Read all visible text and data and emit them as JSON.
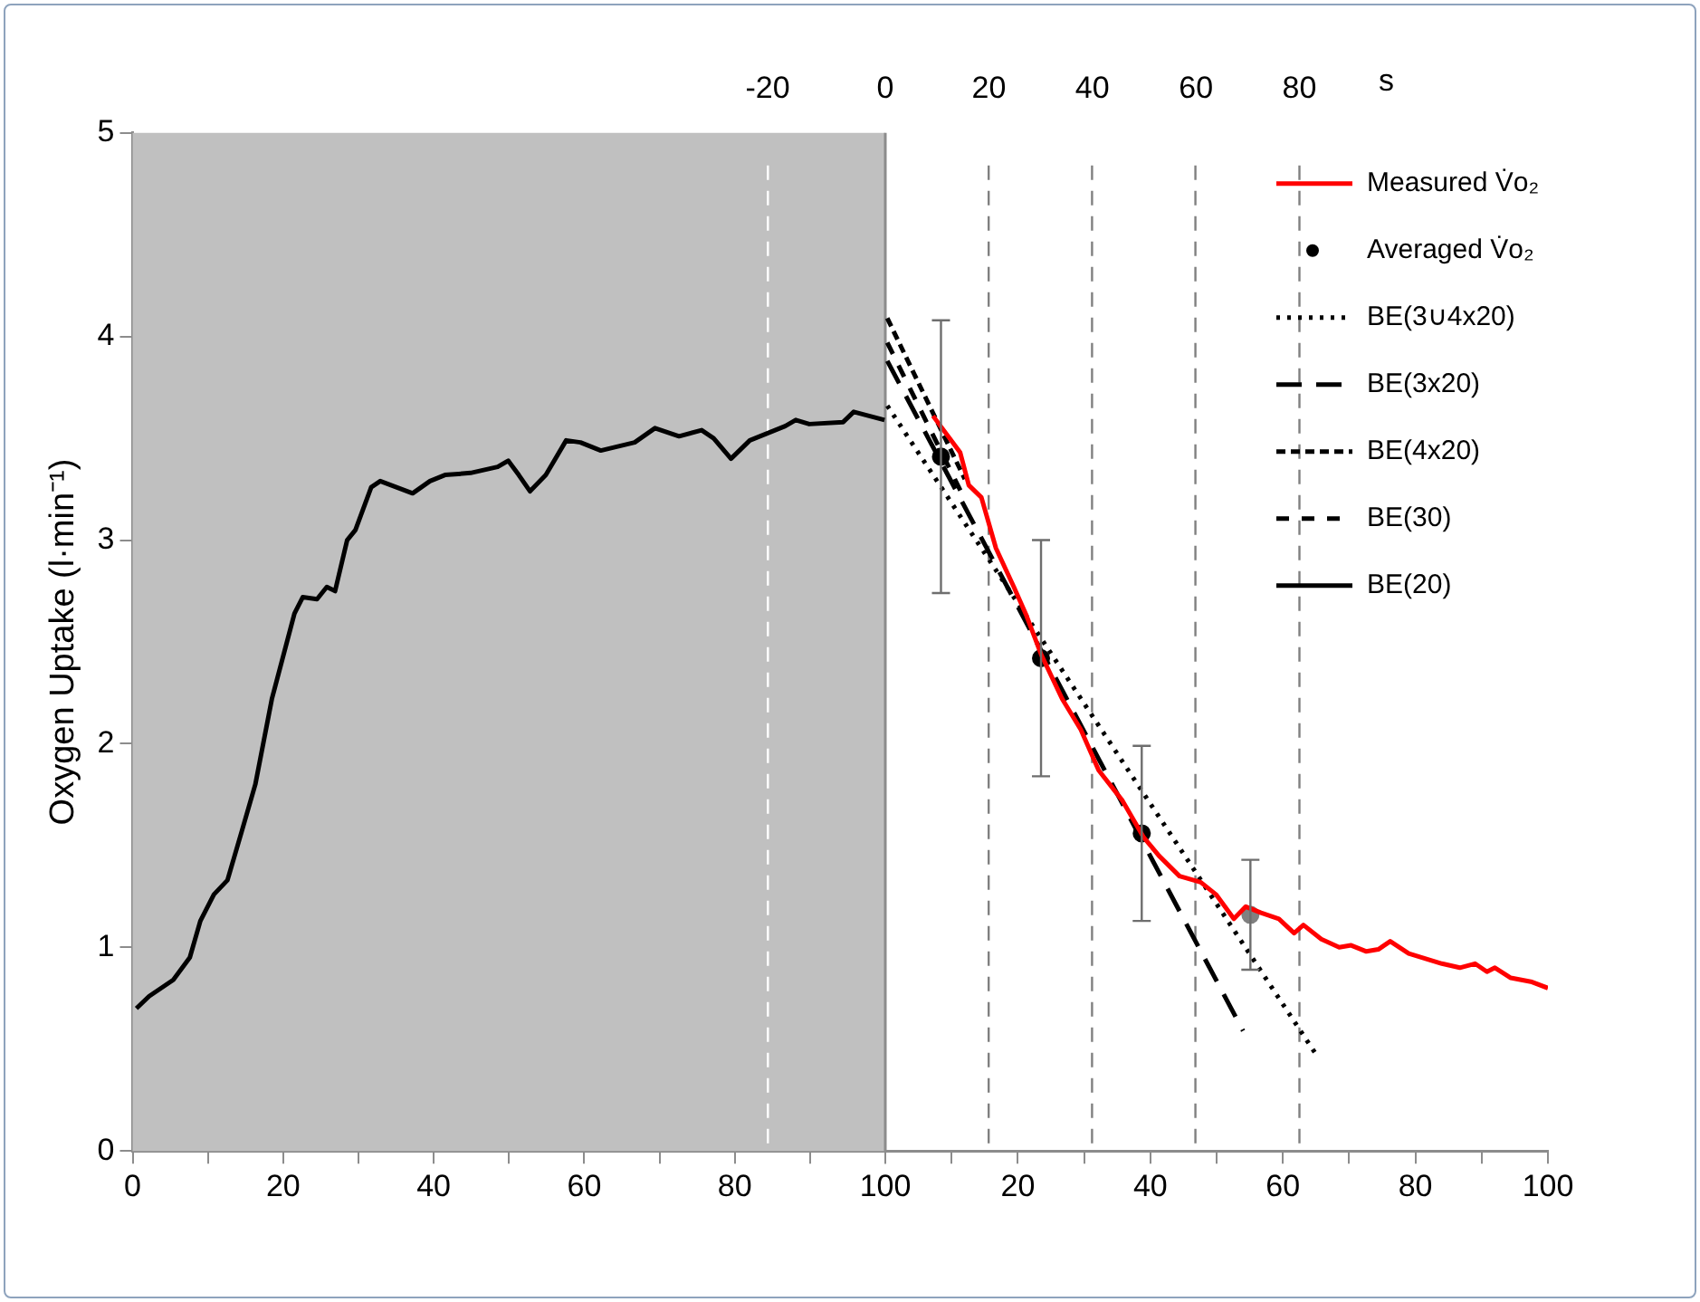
{
  "chart_data": [
    {
      "type": "line",
      "ylabel": "Oxygen Uptake (l·min⁻¹)",
      "xlim": [
        0,
        100
      ],
      "xticks": [
        0,
        {
          "value": 10,
          "label": null
        },
        20,
        {
          "value": 30,
          "label": null
        },
        40,
        {
          "value": 50,
          "label": null
        },
        60,
        {
          "value": 70,
          "label": null
        },
        80,
        {
          "value": 90,
          "label": null
        },
        100
      ],
      "x2lim": [
        -128,
        0
      ],
      "x2ticks": [
        -20,
        0
      ],
      "ylim": [
        0,
        5
      ],
      "yticks": [
        0,
        1,
        2,
        3,
        4,
        5
      ],
      "grid": false,
      "bands": [
        {
          "axis": "x",
          "from": 0,
          "to": 100,
          "color": "#c0c0c0"
        }
      ],
      "ref_lines": [
        {
          "axis": "x",
          "value": 84.4,
          "color": "#ffffff",
          "line_style": "dashed"
        }
      ],
      "series": [
        {
          "color": "#000000",
          "line_style": "solid",
          "x": [
            0.5,
            2.2,
            5.4,
            7.6,
            9,
            10.8,
            12.6,
            14.5,
            16.3,
            18.5,
            21.5,
            22.6,
            24.5,
            25.8,
            26.9,
            28.5,
            29.6,
            31.7,
            32.9,
            37.2,
            39.5,
            41.5,
            44.9,
            48.5,
            49.9,
            51.3,
            52.8,
            54.9,
            57.6,
            59.5,
            62.2,
            66.7,
            69.4,
            72.6,
            75.6,
            77.2,
            79.5,
            82.0,
            86.7,
            88.1,
            89.9,
            94.4,
            95.8,
            99.9
          ],
          "values": [
            0.7,
            0.76,
            0.84,
            0.95,
            1.13,
            1.26,
            1.33,
            1.57,
            1.8,
            2.22,
            2.64,
            2.72,
            2.71,
            2.77,
            2.75,
            3.0,
            3.05,
            3.26,
            3.29,
            3.23,
            3.29,
            3.32,
            3.33,
            3.36,
            3.39,
            3.32,
            3.24,
            3.32,
            3.49,
            3.48,
            3.44,
            3.48,
            3.55,
            3.51,
            3.54,
            3.5,
            3.4,
            3.49,
            3.56,
            3.59,
            3.57,
            3.58,
            3.63,
            3.59
          ]
        }
      ]
    },
    {
      "type": "line",
      "x2label": "s",
      "xlim": [
        0,
        100
      ],
      "xticks": [
        {
          "value": 0,
          "label": null
        },
        {
          "value": 10,
          "label": null
        },
        20,
        {
          "value": 30,
          "label": null
        },
        40,
        {
          "value": 50,
          "label": null
        },
        60,
        {
          "value": 70,
          "label": null
        },
        80,
        {
          "value": 90,
          "label": null
        },
        100
      ],
      "x2lim": [
        0,
        128
      ],
      "x2ticks": [
        20,
        40,
        60,
        80
      ],
      "ylim": [
        0,
        5
      ],
      "grid": false,
      "legend": "top right",
      "tick_labels": "x",
      "ref_lines": [
        {
          "axis": "x",
          "value": 15.6,
          "color": "#808080",
          "line_style": "dashed"
        },
        {
          "axis": "x",
          "value": 31.2,
          "color": "#808080",
          "line_style": "dashed"
        },
        {
          "axis": "x",
          "value": 46.8,
          "color": "#808080",
          "line_style": "dashed"
        },
        {
          "axis": "x",
          "value": 62.5,
          "color": "#808080",
          "line_style": "dashed"
        }
      ],
      "series": [
        {
          "name": "Measured V̇o₂",
          "color": "#ff0000",
          "line_style": "solid",
          "x": [
            7.2,
            11.3,
            12.6,
            14.5,
            16.7,
            19.4,
            21.3,
            23.5,
            26.7,
            29.5,
            32.2,
            35.8,
            39.0,
            41.3,
            44.4,
            47.6,
            49.9,
            52.6,
            54.4,
            56.7,
            59.4,
            61.7,
            63.1,
            65.8,
            68.5,
            70.3,
            72.6,
            74.4,
            76.2,
            79.0,
            84.0,
            86.7,
            89.0,
            90.8,
            92.0,
            94.4,
            97.6,
            100
          ],
          "values": [
            3.61,
            3.43,
            3.27,
            3.21,
            2.96,
            2.77,
            2.63,
            2.44,
            2.22,
            2.07,
            1.87,
            1.72,
            1.54,
            1.45,
            1.35,
            1.32,
            1.26,
            1.14,
            1.2,
            1.17,
            1.14,
            1.07,
            1.11,
            1.04,
            1.0,
            1.01,
            0.98,
            0.99,
            1.03,
            0.97,
            0.92,
            0.9,
            0.92,
            0.88,
            0.9,
            0.85,
            0.83,
            0.8
          ]
        },
        {
          "name": "Averaged V̇o₂",
          "type": "scatter",
          "marker": "circle",
          "colors": [
            "#000000",
            "#000000",
            "#000000",
            "#808080"
          ],
          "x": [
            8.4,
            23.5,
            38.7,
            55.1
          ],
          "values": [
            3.41,
            2.42,
            1.56,
            1.16
          ],
          "errors": [
            0.67,
            0.58,
            0.43,
            0.27
          ]
        },
        {
          "name": "BE(3∪4x20)",
          "color": "#000000",
          "line_style": "dotted",
          "x": [
            0.3,
            65.3
          ],
          "values": [
            3.66,
            0.46
          ]
        },
        {
          "name": "BE(3x20)",
          "color": "#000000",
          "line_style": "dashed",
          "x": [
            0.3,
            54
          ],
          "values": [
            3.88,
            0.59
          ]
        },
        {
          "name": "BE(4x20)",
          "color": "#000000",
          "line_style": "dashed",
          "x": [
            0.3,
            12
          ],
          "values": [
            4.09,
            3.3
          ]
        },
        {
          "name": "BE(30)",
          "color": "#000000",
          "line_style": "dashed",
          "x": [
            0.3,
            12
          ],
          "values": [
            3.97,
            3.2
          ]
        },
        {
          "name": "BE(20)",
          "color": "#000000",
          "line_style": "solid"
        }
      ]
    }
  ]
}
